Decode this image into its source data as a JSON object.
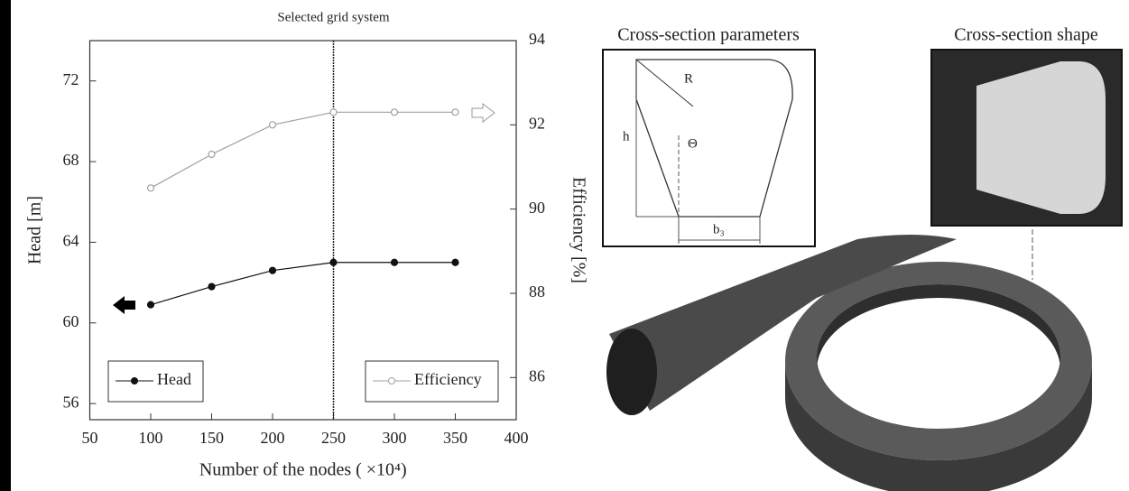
{
  "chart_data": {
    "type": "line",
    "xlabel": "Number of the nodes ( ×10⁴)",
    "ylabel": "Head [m]",
    "y2label": "Efficiency [%]",
    "x": [
      100,
      150,
      200,
      250,
      300,
      350
    ],
    "series": [
      {
        "name": "Head",
        "color": "#111111",
        "marker": "filled",
        "values": [
          60.9,
          61.8,
          62.6,
          63.0,
          63.0,
          63.0
        ]
      },
      {
        "name": "Efficiency",
        "color": "#a0a0a0",
        "marker": "hollow",
        "axis": "y2",
        "values": [
          90.5,
          91.3,
          92.0,
          92.3,
          92.3,
          92.3
        ]
      }
    ],
    "xlim": [
      50,
      400
    ],
    "xticks": [
      50,
      100,
      150,
      200,
      250,
      300,
      350,
      400
    ],
    "ylim": [
      55.2,
      74
    ],
    "yticks": [
      56,
      60,
      64,
      68,
      72
    ],
    "y2lim": [
      85,
      94
    ],
    "y2ticks": [
      86,
      88,
      90,
      92,
      94
    ],
    "vline": {
      "x": 250,
      "label": "Selected grid system"
    }
  },
  "diagram": {
    "parameters_title": "Cross-section parameters",
    "shape_title": "Cross-section shape",
    "labels": {
      "R": "R",
      "h": "h",
      "theta": "Θ",
      "b": "b₃"
    }
  }
}
